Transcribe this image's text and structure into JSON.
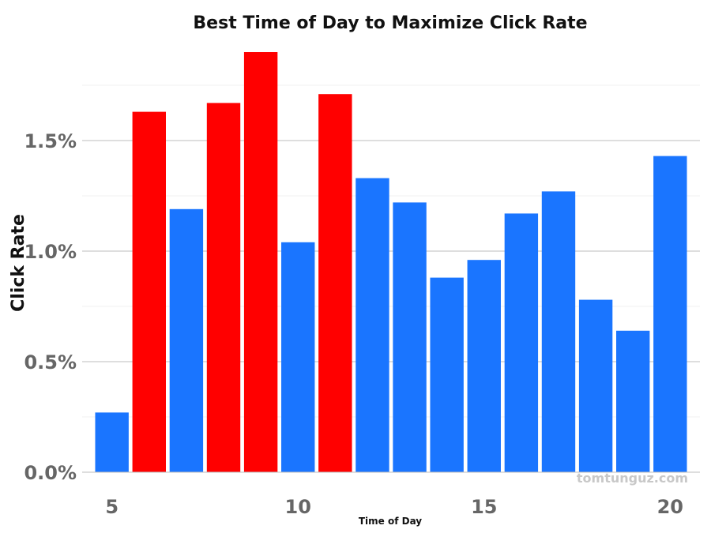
{
  "chart_data": {
    "type": "bar",
    "title": "Best Time of Day to Maximize Click Rate",
    "xlabel": "Time of Day",
    "ylabel": "Click Rate",
    "x": [
      5,
      6,
      7,
      8,
      9,
      10,
      11,
      12,
      13,
      14,
      15,
      16,
      17,
      18,
      19,
      20
    ],
    "values": [
      0.27,
      1.63,
      1.19,
      1.67,
      1.9,
      1.04,
      1.71,
      1.33,
      1.22,
      0.88,
      0.96,
      1.17,
      1.27,
      0.78,
      0.64,
      1.43
    ],
    "highlighted": [
      false,
      true,
      false,
      true,
      true,
      false,
      true,
      false,
      false,
      false,
      false,
      false,
      false,
      false,
      false,
      false
    ],
    "colors": {
      "highlight": "#ff0000",
      "normal": "#1a75ff"
    },
    "xticks": [
      5,
      10,
      15,
      20
    ],
    "yticks": [
      0.0,
      0.5,
      1.0,
      1.5
    ],
    "ytick_labels": [
      "0.0%",
      "0.5%",
      "1.0%",
      "1.5%"
    ],
    "xlim": [
      4.2,
      20.8
    ],
    "ylim": [
      0,
      1.95
    ],
    "grid": true,
    "legend": "none"
  },
  "watermark": "tomtunguz.com"
}
